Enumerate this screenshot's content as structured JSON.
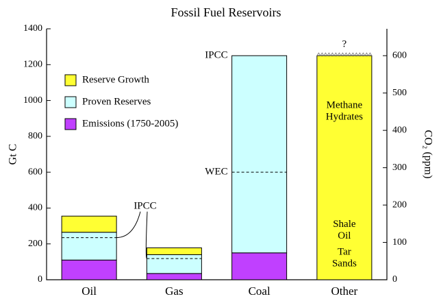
{
  "chart_data": {
    "type": "stacked-bar",
    "title": "Fossil Fuel Reservoirs",
    "y_label": "Gt C",
    "y2_label": "CO₂ (ppm)",
    "categories": [
      "Oil",
      "Gas",
      "Coal",
      "Other"
    ],
    "series": [
      {
        "name": "Emissions (1750-2005)",
        "color": "#c040ff",
        "values": [
          110,
          35,
          150,
          null
        ]
      },
      {
        "name": "Proven Reserves",
        "color": "#ccffff",
        "values": [
          155,
          105,
          1100,
          null
        ]
      },
      {
        "name": "Reserve Growth",
        "color": "#ffff33",
        "values": [
          90,
          38,
          null,
          1250
        ]
      }
    ],
    "ylim": [
      0,
      1400
    ],
    "yticks": [
      0,
      200,
      400,
      600,
      800,
      1000,
      1200,
      1400
    ],
    "y2lim": [
      0,
      672
    ],
    "y2ticks": [
      0,
      100,
      200,
      300,
      400,
      500,
      600
    ],
    "dashed_lines": [
      {
        "category": "Oil",
        "value": 235
      },
      {
        "category": "Gas",
        "value": 118
      },
      {
        "category": "Coal",
        "value": 600
      }
    ],
    "annotations": {
      "ipcc_oil_gas": "IPCC",
      "ipcc_coal": "IPCC",
      "wec": "WEC",
      "unknown": "?",
      "other_labels": [
        [
          "Methane",
          "Hydrates"
        ],
        [
          "Shale",
          "Oil"
        ],
        [
          "Tar",
          "Sands"
        ]
      ]
    },
    "legend": "upper left"
  }
}
